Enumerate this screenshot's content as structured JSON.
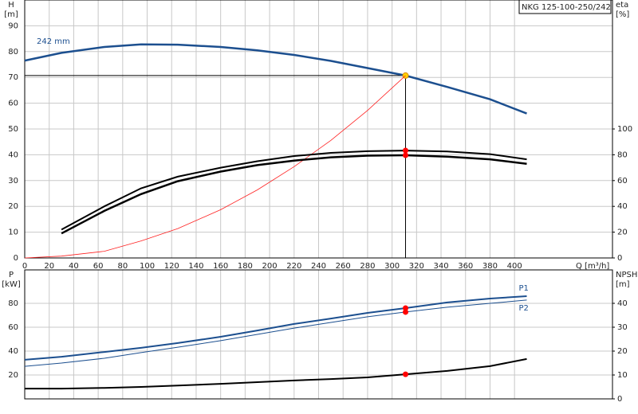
{
  "chart_data": [
    {
      "type": "line",
      "title": "NKG 125-100-250/242",
      "ylabel": [
        "H",
        "[m]"
      ],
      "y2label": [
        "eta",
        "[%]"
      ],
      "xlabel": "Q [m³/h]",
      "x": [
        0,
        30,
        65,
        95,
        125,
        160,
        190,
        220,
        250,
        280,
        311,
        345,
        380,
        410
      ],
      "xlim": [
        0,
        480
      ],
      "xticks": [
        0,
        20,
        40,
        60,
        80,
        100,
        120,
        140,
        160,
        180,
        200,
        220,
        240,
        260,
        280,
        300,
        320,
        340,
        360,
        380,
        400
      ],
      "ylim": [
        0,
        100
      ],
      "yticks": [
        0,
        10,
        20,
        30,
        40,
        50,
        60,
        70,
        80,
        90
      ],
      "y2lim": [
        0,
        200
      ],
      "y2ticks": [
        0,
        20,
        40,
        60,
        80,
        100
      ],
      "grid": true,
      "duty_point": 311,
      "series": [
        {
          "name": "242 mm",
          "color": "#1c4f8f",
          "width": 2.5,
          "marker_color": "#ffd400",
          "values": [
            76.5,
            79.5,
            81.8,
            82.8,
            82.7,
            81.8,
            80.5,
            78.7,
            76.4,
            73.6,
            70.7,
            66.3,
            61.5,
            56
          ]
        },
        {
          "color": "#ff2020",
          "width": 0.8,
          "values": [
            0,
            0.7,
            2.6,
            6.6,
            11.4,
            18.7,
            26.4,
            35.4,
            45.6,
            57.2,
            70.7,
            null,
            null,
            null
          ]
        },
        {
          "color": "#000000",
          "width": 2,
          "axis": "y2",
          "marker_color": "#ff0000",
          "values": [
            null,
            22,
            40,
            54,
            63,
            70,
            75,
            79,
            81.5,
            82.8,
            83.3,
            82.5,
            80.5,
            76.5
          ]
        },
        {
          "color": "#000000",
          "width": 2.5,
          "axis": "y2",
          "marker_color": "#ff0000",
          "values": [
            null,
            19,
            36.5,
            49.5,
            59.5,
            67,
            72,
            75.5,
            78,
            79.3,
            79.6,
            78.5,
            76.5,
            73
          ]
        }
      ]
    },
    {
      "type": "line",
      "ylabel": [
        "P",
        "[kW]"
      ],
      "y2label": [
        "NPSH",
        "[m]"
      ],
      "x": [
        0,
        30,
        65,
        95,
        125,
        160,
        190,
        220,
        250,
        280,
        311,
        345,
        380,
        410
      ],
      "xlim": [
        0,
        480
      ],
      "xticks": [
        0,
        20,
        40,
        60,
        80,
        100,
        120,
        140,
        160,
        180,
        200,
        220,
        240,
        260,
        280,
        300,
        320,
        340,
        360,
        380,
        400
      ],
      "ylim": [
        0,
        108
      ],
      "yticks": [
        20,
        40,
        60,
        80
      ],
      "y2lim": [
        0,
        54
      ],
      "y2ticks": [
        0,
        10,
        20,
        30,
        40
      ],
      "grid": true,
      "duty_point": 311,
      "series": [
        {
          "name": "P1",
          "color": "#1c4f8f",
          "width": 2,
          "marker_color": "#ff0000",
          "values": [
            32.7,
            35.3,
            39.3,
            42.7,
            46.7,
            52,
            57.3,
            62.7,
            67.3,
            72,
            76,
            80.7,
            84,
            86
          ]
        },
        {
          "name": "P2",
          "color": "#1c4f8f",
          "width": 1,
          "marker_color": "#ff0000",
          "values": [
            27.3,
            30,
            34,
            38.7,
            43.3,
            48.7,
            54,
            59.3,
            64,
            68.7,
            72.7,
            76.7,
            80,
            82.7
          ]
        },
        {
          "color": "#000000",
          "width": 2,
          "axis": "y2",
          "marker_color": "#ff0000",
          "values": [
            4.3,
            4.3,
            4.6,
            5,
            5.6,
            6.3,
            7,
            7.7,
            8.3,
            9,
            10.3,
            11.7,
            13.7,
            16.7
          ]
        }
      ]
    }
  ]
}
